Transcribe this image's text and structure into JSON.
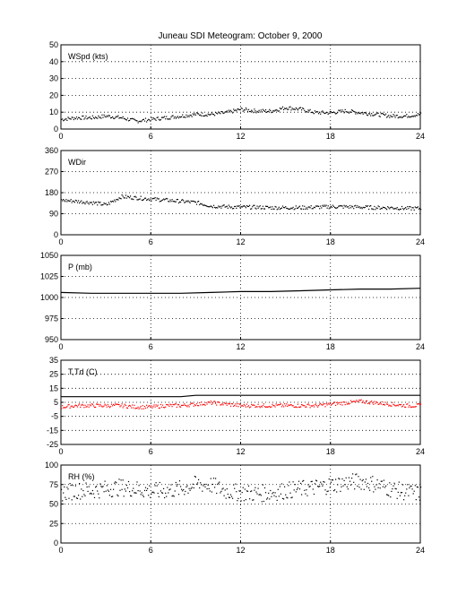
{
  "title": "Juneau SDI Meteogram:    October  9, 2000",
  "chart_data": [
    {
      "type": "scatter",
      "label": "WSpd (kts)",
      "xlim": [
        0,
        24
      ],
      "ylim": [
        0,
        50
      ],
      "xticks": [
        "0",
        "6",
        "12",
        "18",
        "24"
      ],
      "yticks": [
        "0",
        "10",
        "20",
        "30",
        "40",
        "50"
      ],
      "grid": true,
      "series": [
        {
          "color": "#000000",
          "marker": "dot",
          "x": [
            0,
            1,
            2,
            3,
            4,
            5,
            6,
            7,
            8,
            9,
            10,
            11,
            12,
            13,
            14,
            15,
            16,
            17,
            18,
            19,
            20,
            21,
            22,
            23,
            24
          ],
          "y": [
            6,
            7,
            7,
            8,
            7,
            5,
            6,
            7,
            8,
            9,
            9,
            10,
            12,
            11,
            11,
            13,
            12,
            10,
            10,
            11,
            10,
            9,
            8,
            8,
            9
          ]
        }
      ]
    },
    {
      "type": "scatter",
      "label": "WDir",
      "xlim": [
        0,
        24
      ],
      "ylim": [
        0,
        360
      ],
      "xticks": [
        "0",
        "6",
        "12",
        "18",
        "24"
      ],
      "yticks": [
        "0",
        "90",
        "180",
        "270",
        "360"
      ],
      "grid": true,
      "series": [
        {
          "color": "#000000",
          "marker": "dot",
          "x": [
            0,
            1,
            2,
            3,
            4,
            5,
            6,
            7,
            8,
            9,
            10,
            11,
            12,
            13,
            14,
            15,
            16,
            17,
            18,
            19,
            20,
            21,
            22,
            23,
            24
          ],
          "y": [
            150,
            145,
            140,
            130,
            165,
            160,
            155,
            150,
            145,
            140,
            125,
            122,
            120,
            120,
            118,
            118,
            118,
            120,
            122,
            122,
            120,
            118,
            118,
            115,
            115
          ]
        }
      ]
    },
    {
      "type": "line",
      "label": "P (mb)",
      "xlim": [
        0,
        24
      ],
      "ylim": [
        950,
        1050
      ],
      "xticks": [
        "0",
        "6",
        "12",
        "18",
        "24"
      ],
      "yticks": [
        "950",
        "975",
        "1000",
        "1025",
        "1050"
      ],
      "grid": true,
      "series": [
        {
          "color": "#000000",
          "x": [
            0,
            2,
            4,
            6,
            8,
            10,
            12,
            14,
            16,
            18,
            20,
            22,
            24
          ],
          "y": [
            1006,
            1005,
            1005,
            1005,
            1005,
            1006,
            1007,
            1007,
            1008,
            1009,
            1010,
            1010,
            1011
          ]
        }
      ]
    },
    {
      "type": "line",
      "label": "T,Td (C)",
      "xlim": [
        0,
        24
      ],
      "ylim": [
        -25,
        35
      ],
      "xticks": [
        "0",
        "6",
        "12",
        "18",
        "24"
      ],
      "yticks": [
        "-25",
        "-15",
        "-5",
        "5",
        "15",
        "25",
        "35"
      ],
      "grid": true,
      "series": [
        {
          "color": "#000000",
          "x": [
            0,
            1,
            2,
            3,
            4,
            5,
            6,
            7,
            8,
            9,
            10,
            11,
            12,
            13,
            14,
            15,
            16,
            17,
            18,
            19,
            20,
            21,
            22,
            23,
            24
          ],
          "y": [
            9,
            9,
            9,
            9,
            9,
            9,
            9,
            9,
            9,
            10,
            10,
            10,
            10,
            10,
            10,
            10,
            10,
            10,
            10,
            10,
            10,
            10,
            10,
            10,
            10
          ]
        },
        {
          "color": "#ff0000",
          "marker": "dot",
          "x": [
            0,
            1,
            2,
            3,
            4,
            5,
            6,
            7,
            8,
            9,
            10,
            11,
            12,
            13,
            14,
            15,
            16,
            17,
            18,
            19,
            20,
            21,
            22,
            23,
            24
          ],
          "y": [
            2,
            3,
            3,
            3,
            3,
            2,
            2,
            3,
            3,
            4,
            5,
            4,
            3,
            3,
            3,
            3,
            3,
            3,
            4,
            5,
            6,
            5,
            4,
            3,
            3
          ]
        }
      ]
    },
    {
      "type": "scatter",
      "label": "RH (%)",
      "xlim": [
        0,
        24
      ],
      "ylim": [
        0,
        100
      ],
      "xticks": [
        "0",
        "6",
        "12",
        "18",
        "24"
      ],
      "yticks": [
        "0",
        "25",
        "50",
        "75",
        "100"
      ],
      "grid": true,
      "series": [
        {
          "color": "#000000",
          "marker": "dot",
          "x": [
            0,
            1,
            2,
            3,
            4,
            5,
            6,
            7,
            8,
            9,
            10,
            11,
            12,
            13,
            14,
            15,
            16,
            17,
            18,
            19,
            20,
            21,
            22,
            23,
            24
          ],
          "y": [
            65,
            68,
            68,
            70,
            72,
            70,
            67,
            68,
            70,
            76,
            75,
            67,
            65,
            64,
            65,
            68,
            70,
            72,
            75,
            78,
            80,
            76,
            70,
            66,
            64
          ]
        }
      ]
    }
  ]
}
